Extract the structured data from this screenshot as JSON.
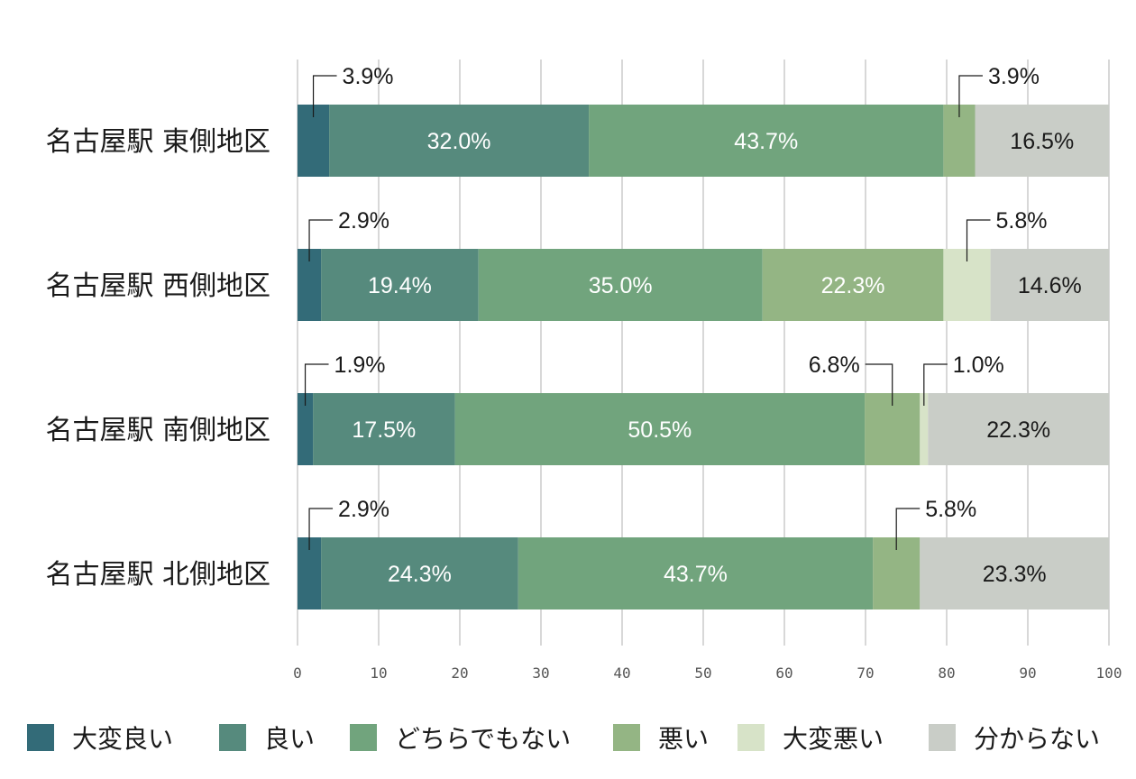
{
  "chart_data": {
    "type": "bar",
    "orientation": "horizontal",
    "stacked": true,
    "categories": [
      "名古屋駅 東側地区",
      "名古屋駅 西側地区",
      "名古屋駅 南側地区",
      "名古屋駅 北側地区"
    ],
    "series": [
      {
        "name": "大変良い",
        "color": "#336b78",
        "values": [
          3.9,
          2.9,
          1.9,
          2.9
        ],
        "labels": [
          "3.9%",
          "2.9%",
          "1.9%",
          "2.9%"
        ]
      },
      {
        "name": "良い",
        "color": "#568a7d",
        "values": [
          32.0,
          19.4,
          17.5,
          24.3
        ],
        "labels": [
          "32.0%",
          "19.4%",
          "17.5%",
          "24.3%"
        ]
      },
      {
        "name": "どちらでもない",
        "color": "#71a47d",
        "values": [
          43.7,
          35.0,
          50.5,
          43.7
        ],
        "labels": [
          "43.7%",
          "35.0%",
          "50.5%",
          "43.7%"
        ]
      },
      {
        "name": "悪い",
        "color": "#94b584",
        "values": [
          3.9,
          22.3,
          6.8,
          5.8
        ],
        "labels": [
          "3.9%",
          "22.3%",
          "6.8%",
          "5.8%"
        ]
      },
      {
        "name": "大変悪い",
        "color": "#d7e3c8",
        "values": [
          0,
          5.8,
          1.0,
          0
        ],
        "labels": [
          "",
          "5.8%",
          "1.0%",
          ""
        ]
      },
      {
        "name": "分からない",
        "color": "#c9cdc7",
        "values": [
          16.5,
          14.6,
          22.3,
          23.3
        ],
        "labels": [
          "16.5%",
          "14.6%",
          "22.3%",
          "23.3%"
        ]
      }
    ],
    "xlim": [
      0,
      100
    ],
    "xticks": [
      "0",
      "10",
      "20",
      "30",
      "40",
      "50",
      "60",
      "70",
      "80",
      "90",
      "100"
    ],
    "grid": true,
    "legend_position": "bottom",
    "title": "",
    "xlabel": "",
    "ylabel": ""
  }
}
